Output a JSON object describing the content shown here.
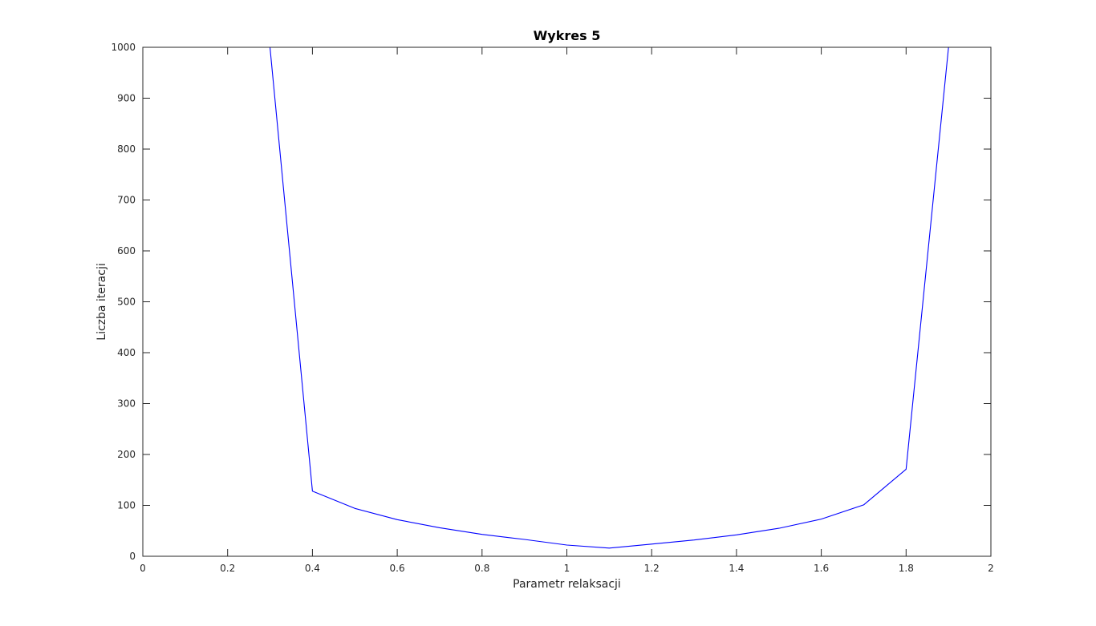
{
  "chart_data": {
    "type": "line",
    "title": "Wykres 5",
    "xlabel": "Parametr relaksacji",
    "ylabel": "Liczba iteracji",
    "xlim": [
      0,
      2
    ],
    "ylim": [
      0,
      1000
    ],
    "grid": false,
    "x_ticks": [
      0,
      0.2,
      0.4,
      0.6,
      0.8,
      1,
      1.2,
      1.4,
      1.6,
      1.8,
      2
    ],
    "x_tick_labels": [
      "0",
      "0.2",
      "0.4",
      "0.6",
      "0.8",
      "1",
      "1.2",
      "1.4",
      "1.6",
      "1.8",
      "2"
    ],
    "y_ticks": [
      0,
      100,
      200,
      300,
      400,
      500,
      600,
      700,
      800,
      900,
      1000
    ],
    "y_tick_labels": [
      "0",
      "100",
      "200",
      "300",
      "400",
      "500",
      "600",
      "700",
      "800",
      "900",
      "1000"
    ],
    "series": [
      {
        "color": "#0000ff",
        "x": [
          0,
          0.1,
          0.2,
          0.3,
          0.4,
          0.5,
          0.6,
          0.7,
          0.8,
          0.9,
          1.0,
          1.1,
          1.2,
          1.3,
          1.4,
          1.5,
          1.6,
          1.7,
          1.8,
          1.9,
          2.0
        ],
        "y": [
          1000,
          1000,
          1000,
          1000,
          128,
          94,
          72,
          56,
          43,
          33,
          22,
          16,
          24,
          32,
          42,
          55,
          73,
          101,
          171,
          1000,
          1000
        ]
      }
    ]
  }
}
